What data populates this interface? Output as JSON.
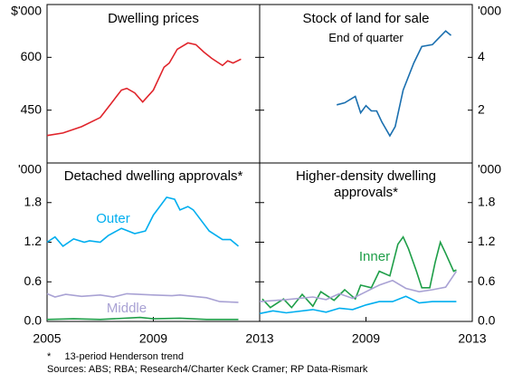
{
  "chart_data": [
    {
      "type": "line",
      "title": "Dwelling prices",
      "y_unit": "$'000",
      "axis_side": "left",
      "xlim": [
        2005,
        2013
      ],
      "ylim": [
        300,
        750
      ],
      "yticks": [
        450,
        600
      ],
      "grid": false,
      "series": [
        {
          "color": "#e0242b",
          "x": [
            2005.0,
            2005.6,
            2006.3,
            2007.0,
            2007.4,
            2007.8,
            2008.0,
            2008.3,
            2008.6,
            2009.0,
            2009.4,
            2009.6,
            2009.9,
            2010.3,
            2010.6,
            2010.9,
            2011.2,
            2011.6,
            2011.8,
            2012.0,
            2012.3
          ],
          "values": [
            378,
            385,
            403,
            429,
            468,
            507,
            512,
            499,
            473,
            507,
            572,
            584,
            623,
            641,
            636,
            615,
            597,
            577,
            590,
            584,
            595
          ]
        }
      ]
    },
    {
      "type": "line",
      "title": "Stock of land for sale",
      "subtitle": "End of quarter",
      "y_unit": "'000",
      "axis_side": "right",
      "xlim": [
        2005,
        2013
      ],
      "ylim": [
        0,
        6
      ],
      "yticks": [
        2,
        4
      ],
      "grid": false,
      "series": [
        {
          "color": "#1a6faf",
          "x": [
            2007.9,
            2008.2,
            2008.6,
            2008.8,
            2009.0,
            2009.2,
            2009.4,
            2009.6,
            2009.9,
            2010.1,
            2010.4,
            2010.8,
            2011.1,
            2011.5,
            2011.7,
            2012.0,
            2012.2
          ],
          "values": [
            2.2,
            2.28,
            2.52,
            1.9,
            2.17,
            1.97,
            1.97,
            1.55,
            1.03,
            1.38,
            2.76,
            3.79,
            4.41,
            4.48,
            4.69,
            5.0,
            4.83
          ]
        }
      ]
    },
    {
      "type": "line",
      "title": "Detached dwelling approvals*",
      "y_unit": "'000",
      "axis_side": "left",
      "xlim": [
        2005,
        2013
      ],
      "xticks": [
        2005,
        2009,
        2013
      ],
      "ylim": [
        0,
        2.4
      ],
      "yticks": [
        {
          "value": 0,
          "label": "0.0"
        },
        0.6,
        1.2,
        1.8
      ],
      "grid": false,
      "series": [
        {
          "name": "Outer",
          "color": "#00aeef",
          "x": [
            2005.0,
            2005.3,
            2005.6,
            2006.0,
            2006.4,
            2006.6,
            2007.0,
            2007.3,
            2007.8,
            2008.3,
            2008.7,
            2009.0,
            2009.5,
            2009.8,
            2010.0,
            2010.3,
            2010.5,
            2011.1,
            2011.6,
            2011.9,
            2012.2
          ],
          "values": [
            1.2,
            1.28,
            1.14,
            1.25,
            1.2,
            1.22,
            1.2,
            1.3,
            1.41,
            1.33,
            1.37,
            1.61,
            1.88,
            1.85,
            1.69,
            1.74,
            1.69,
            1.37,
            1.24,
            1.24,
            1.14
          ]
        },
        {
          "name": "Middle",
          "color": "#a9a2d4",
          "x": [
            2005.0,
            2005.3,
            2005.7,
            2006.3,
            2007.0,
            2007.5,
            2008.0,
            2009.0,
            2009.7,
            2010.0,
            2011.0,
            2011.5,
            2012.2
          ],
          "values": [
            0.42,
            0.37,
            0.41,
            0.38,
            0.4,
            0.37,
            0.42,
            0.4,
            0.39,
            0.4,
            0.36,
            0.3,
            0.29
          ]
        },
        {
          "color": "#1e9e48",
          "x": [
            2005.0,
            2006.0,
            2007.0,
            2008.5,
            2009.0,
            2010.0,
            2011.0,
            2012.2
          ],
          "values": [
            0.03,
            0.04,
            0.03,
            0.06,
            0.04,
            0.05,
            0.03,
            0.03
          ]
        }
      ]
    },
    {
      "type": "line",
      "title": "Higher-density dwelling approvals*",
      "y_unit": "'000",
      "axis_side": "right",
      "xlim": [
        2005,
        2013
      ],
      "xticks": [
        2009,
        2013
      ],
      "ylim": [
        0,
        2.4
      ],
      "yticks": [
        {
          "value": 0,
          "label": "0.0"
        },
        0.6,
        1.2,
        1.8
      ],
      "grid": false,
      "series": [
        {
          "name": "Inner",
          "color": "#1e9e48",
          "x": [
            2005.1,
            2005.4,
            2005.9,
            2006.2,
            2006.6,
            2007.0,
            2007.3,
            2007.8,
            2008.2,
            2008.6,
            2008.8,
            2009.2,
            2009.5,
            2009.9,
            2010.2,
            2010.4,
            2010.6,
            2010.9,
            2011.1,
            2011.4,
            2011.6,
            2011.8,
            2012.0,
            2012.3,
            2012.4
          ],
          "values": [
            0.34,
            0.21,
            0.34,
            0.21,
            0.41,
            0.23,
            0.45,
            0.32,
            0.48,
            0.34,
            0.55,
            0.51,
            0.76,
            0.69,
            1.17,
            1.28,
            1.1,
            0.76,
            0.51,
            0.51,
            0.89,
            1.2,
            1.03,
            0.76,
            0.78
          ]
        },
        {
          "color": "#a9a2d4",
          "x": [
            2005.0,
            2006.0,
            2007.0,
            2007.5,
            2008.0,
            2008.5,
            2009.0,
            2009.5,
            2010.0,
            2010.5,
            2011.0,
            2011.5,
            2012.0,
            2012.4
          ],
          "values": [
            0.3,
            0.33,
            0.37,
            0.33,
            0.42,
            0.35,
            0.45,
            0.55,
            0.62,
            0.5,
            0.45,
            0.48,
            0.52,
            0.76
          ]
        },
        {
          "color": "#00aeef",
          "x": [
            2005.0,
            2005.5,
            2006.0,
            2007.0,
            2007.5,
            2008.0,
            2008.5,
            2009.0,
            2009.5,
            2010.0,
            2010.5,
            2011.0,
            2011.5,
            2012.0,
            2012.4
          ],
          "values": [
            0.12,
            0.16,
            0.13,
            0.18,
            0.14,
            0.2,
            0.18,
            0.25,
            0.3,
            0.3,
            0.38,
            0.28,
            0.3,
            0.3,
            0.3
          ]
        }
      ]
    }
  ],
  "footnotes": [
    "*     13-period Henderson trend",
    "Sources: ABS; RBA; Research4/Charter Keck Cramer; RP Data-Rismark"
  ]
}
